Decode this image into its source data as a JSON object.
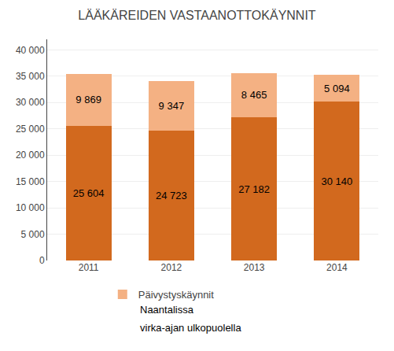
{
  "chart_data": {
    "type": "bar",
    "title": "LÄÄKÄREIDEN VASTAANOTTOKÄYNNIT",
    "categories": [
      "2011",
      "2012",
      "2013",
      "2014"
    ],
    "series": [
      {
        "color": "#d2691e",
        "values": [
          25604,
          24723,
          27182,
          30140
        ],
        "value_labels": [
          "25 604",
          "24 723",
          "27 182",
          "30 140"
        ]
      },
      {
        "name": "Päivystyskäynnit",
        "color": "#f4b183",
        "values": [
          9869,
          9347,
          8465,
          5094
        ],
        "value_labels": [
          "9 869",
          "9 347",
          "8 465",
          "5 094"
        ]
      }
    ],
    "stacked": true,
    "data_labels": true,
    "ylim": [
      0,
      42000
    ],
    "yticks": [
      0,
      {
        "value": 5000,
        "label": "5 000"
      },
      {
        "value": 10000,
        "label": "10 000"
      },
      {
        "value": 15000,
        "label": "15 000"
      },
      {
        "value": 20000,
        "label": "20 000"
      },
      {
        "value": 25000,
        "label": "25 000"
      },
      {
        "value": 30000,
        "label": "30 000"
      },
      {
        "value": 35000,
        "label": "35 000"
      },
      {
        "value": 40000,
        "label": "40 000"
      }
    ],
    "grid": true,
    "legend": "bottom",
    "annotations": [
      "Naantalissa",
      "virka-ajan ulkopuolella"
    ]
  }
}
